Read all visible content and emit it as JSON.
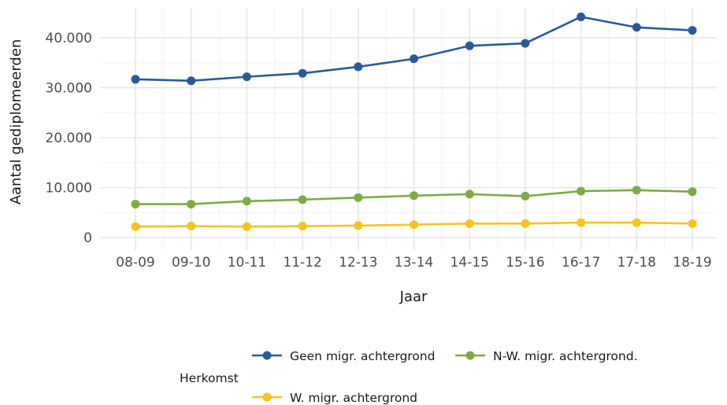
{
  "chart_data": {
    "type": "line",
    "xlabel": "Jaar",
    "ylabel": "Aantal gediplomeerden",
    "categories": [
      "08-09",
      "09-10",
      "10-11",
      "11-12",
      "12-13",
      "13-14",
      "14-15",
      "15-16",
      "16-17",
      "17-18",
      "18-19"
    ],
    "ylim": [
      -2500,
      46000
    ],
    "yticks": [
      0,
      10000,
      20000,
      30000,
      40000
    ],
    "ytick_labels": [
      "0",
      "10.000",
      "20.000",
      "30.000",
      "40.000"
    ],
    "grid": true,
    "legend": {
      "title": "Herkomst",
      "position": "bottom"
    },
    "series": [
      {
        "name": "Geen migr. achtergrond",
        "color": "#2b5b95",
        "values": [
          31700,
          31400,
          32200,
          32900,
          34200,
          35800,
          38400,
          38900,
          44200,
          42100,
          41500
        ]
      },
      {
        "name": "N-W. migr. achtergrond.",
        "color": "#7faa45",
        "values": [
          6700,
          6700,
          7300,
          7600,
          8000,
          8400,
          8700,
          8300,
          9300,
          9500,
          9200
        ]
      },
      {
        "name": "W. migr. achtergrond",
        "color": "#f7c31e",
        "values": [
          2200,
          2300,
          2200,
          2300,
          2400,
          2600,
          2800,
          2800,
          3000,
          3000,
          2800
        ]
      }
    ]
  }
}
